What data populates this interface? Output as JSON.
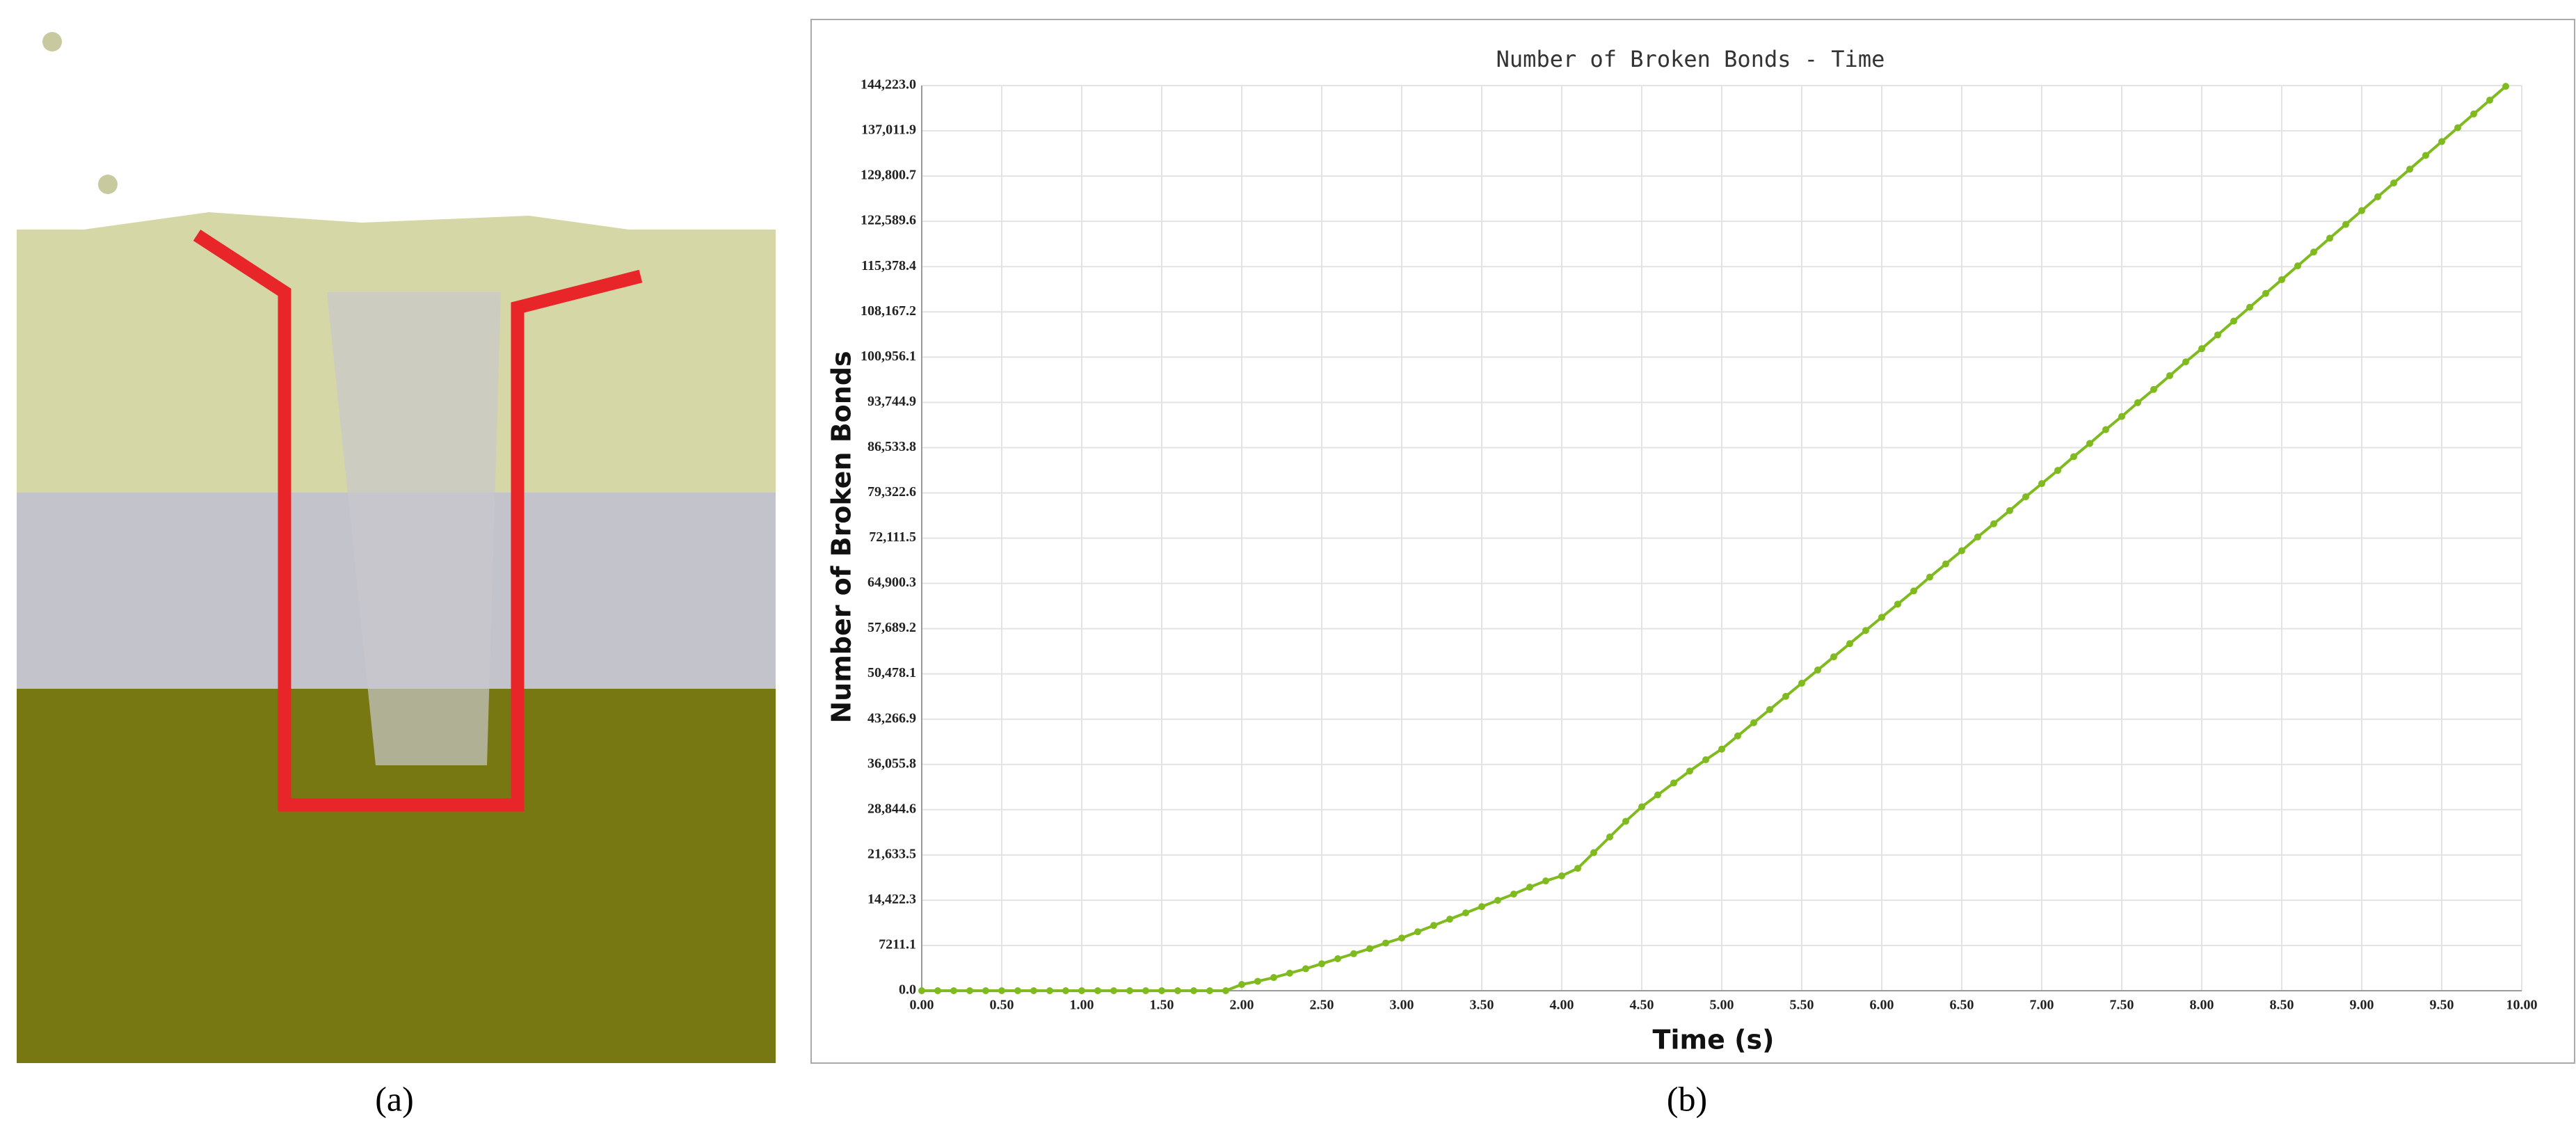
{
  "panel_labels": [
    "(a)",
    "(b)"
  ],
  "chart_data": {
    "type": "line",
    "title": "Number of Broken Bonds - Time",
    "x_label": "Time (s)",
    "y_label": "Number of Broken Bonds",
    "color": "#7fba1e",
    "grid": true,
    "x": [
      0.0,
      0.1,
      0.2,
      0.3,
      0.4,
      0.5,
      0.6,
      0.7,
      0.8,
      0.9,
      1.0,
      1.1,
      1.2,
      1.3,
      1.4,
      1.5,
      1.6,
      1.7,
      1.8,
      1.9,
      2.0,
      2.1,
      2.2,
      2.3,
      2.4,
      2.5,
      2.6,
      2.7,
      2.8,
      2.9,
      3.0,
      3.1,
      3.2,
      3.3,
      3.4,
      3.5,
      3.6,
      3.7,
      3.8,
      3.9,
      4.0,
      4.1,
      4.2,
      4.3,
      4.4,
      4.5,
      4.6,
      4.7,
      4.8,
      4.9,
      5.0,
      5.1,
      5.2,
      5.3,
      5.4,
      5.5,
      5.6,
      5.7,
      5.8,
      5.9,
      6.0,
      6.1,
      6.2,
      6.3,
      6.4,
      6.5,
      6.6,
      6.7,
      6.8,
      6.9,
      7.0,
      7.1,
      7.2,
      7.3,
      7.4,
      7.5,
      7.6,
      7.7,
      7.8,
      7.9,
      8.0,
      8.1,
      8.2,
      8.3,
      8.4,
      8.5,
      8.6,
      8.7,
      8.8,
      8.9,
      9.0,
      9.1,
      9.2,
      9.3,
      9.4,
      9.5,
      9.6,
      9.7,
      9.8,
      9.9
    ],
    "values": [
      0,
      0,
      0,
      0,
      0,
      0,
      0,
      0,
      0,
      0,
      0,
      0,
      0,
      0,
      0,
      0,
      0,
      0,
      0,
      0,
      1000,
      1500,
      2100,
      2800,
      3500,
      4300,
      5100,
      5900,
      6700,
      7600,
      8400,
      9400,
      10400,
      11400,
      12400,
      13400,
      14400,
      15400,
      16500,
      17500,
      18300,
      19500,
      22000,
      24500,
      27000,
      29300,
      31200,
      33100,
      35000,
      36800,
      38500,
      40600,
      42700,
      44800,
      46900,
      49000,
      51100,
      53200,
      55300,
      57400,
      59500,
      61600,
      63700,
      65900,
      68000,
      70100,
      72300,
      74400,
      76500,
      78700,
      80800,
      82900,
      85100,
      87200,
      89400,
      91500,
      93700,
      95800,
      98000,
      100200,
      102300,
      104500,
      106700,
      108900,
      111100,
      113300,
      115500,
      117700,
      119900,
      122100,
      124300,
      126500,
      128700,
      130900,
      133100,
      135300,
      137500,
      139700,
      141900,
      144100
    ],
    "xlim": [
      0,
      10
    ],
    "ylim": [
      0,
      144223.0
    ],
    "xticks": [
      {
        "value": 0,
        "label": "0.00"
      },
      {
        "value": 0.5,
        "label": "0.50"
      },
      {
        "value": 1,
        "label": "1.00"
      },
      {
        "value": 1.5,
        "label": "1.50"
      },
      {
        "value": 2,
        "label": "2.00"
      },
      {
        "value": 2.5,
        "label": "2.50"
      },
      {
        "value": 3,
        "label": "3.00"
      },
      {
        "value": 3.5,
        "label": "3.50"
      },
      {
        "value": 4,
        "label": "4.00"
      },
      {
        "value": 4.5,
        "label": "4.50"
      },
      {
        "value": 5,
        "label": "5.00"
      },
      {
        "value": 5.5,
        "label": "5.50"
      },
      {
        "value": 6,
        "label": "6.00"
      },
      {
        "value": 6.5,
        "label": "6.50"
      },
      {
        "value": 7,
        "label": "7.00"
      },
      {
        "value": 7.5,
        "label": "7.50"
      },
      {
        "value": 8,
        "label": "8.00"
      },
      {
        "value": 8.5,
        "label": "8.50"
      },
      {
        "value": 9,
        "label": "9.00"
      },
      {
        "value": 9.5,
        "label": "9.50"
      },
      {
        "value": 10,
        "label": "10.00"
      }
    ],
    "yticks": [
      {
        "value": 0,
        "label": "0.0"
      },
      7211.1,
      {
        "value": 14422.3,
        "label": "14,422.3"
      },
      {
        "value": 21633.5,
        "label": "21,633.5"
      },
      {
        "value": 28844.6,
        "label": "28,844.6"
      },
      {
        "value": 36055.8,
        "label": "36,055.8"
      },
      {
        "value": 43266.9,
        "label": "43,266.9"
      },
      {
        "value": 50478.1,
        "label": "50,478.1"
      },
      {
        "value": 57689.2,
        "label": "57,689.2"
      },
      {
        "value": 64900.3,
        "label": "64,900.3"
      },
      {
        "value": 72111.5,
        "label": "72,111.5"
      },
      {
        "value": 79322.6,
        "label": "79,322.6"
      },
      {
        "value": 86533.8,
        "label": "86,533.8"
      },
      {
        "value": 93744.9,
        "label": "93,744.9"
      },
      {
        "value": 100956.1,
        "label": "100,956.1"
      },
      {
        "value": 108167.2,
        "label": "108,167.2"
      },
      {
        "value": 115378.4,
        "label": "115,378.4"
      },
      {
        "value": 122589.6,
        "label": "122,589.6"
      },
      {
        "value": 129800.7,
        "label": "129,800.7"
      },
      {
        "value": 137011.9,
        "label": "137,011.9"
      },
      {
        "value": 144223.0,
        "label": "144,223.0"
      }
    ]
  }
}
